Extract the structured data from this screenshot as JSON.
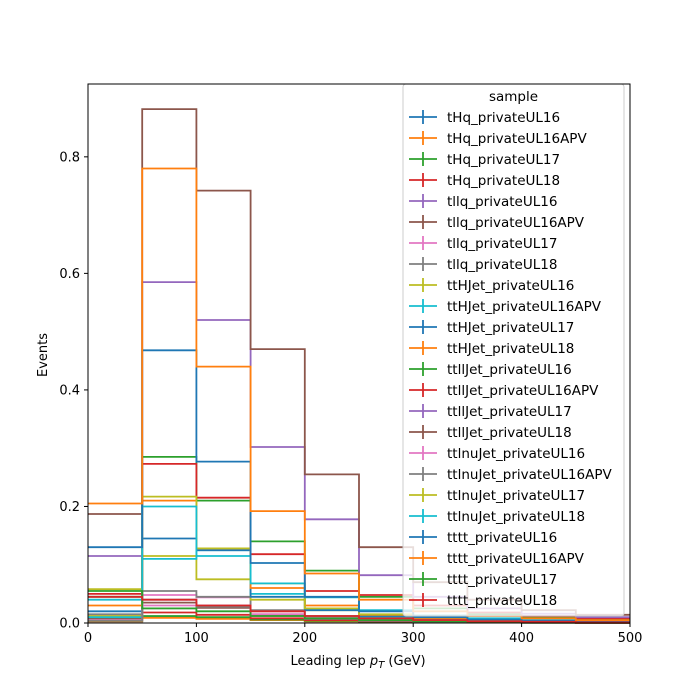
{
  "chart_data": {
    "type": "step_histogram",
    "xlabel_main": "Leading lep ",
    "xlabel_p": "p",
    "xlabel_sub": "T",
    "xlabel_unit": " (GeV)",
    "ylabel": "Events",
    "xlim": [
      0,
      500
    ],
    "ylim": [
      0,
      0.925
    ],
    "grid": false,
    "bin_edges": [
      0,
      50,
      100,
      150,
      200,
      250,
      300,
      350,
      400,
      450,
      500
    ],
    "xticks": [
      0,
      100,
      200,
      300,
      400,
      500
    ],
    "xtick_labels": [
      "0",
      "100",
      "200",
      "300",
      "400",
      "500"
    ],
    "yticks": [
      0.0,
      0.2,
      0.4,
      0.6,
      0.8
    ],
    "ytick_labels": [
      "0.0",
      "0.2",
      "0.4",
      "0.6",
      "0.8"
    ],
    "legend": {
      "title": "sample",
      "placement": "upper-right"
    },
    "series": [
      {
        "name": "tHq_privateUL16",
        "color": "#1f77b4",
        "values": [
          0.003,
          0.01,
          0.008,
          0.005,
          0.003,
          0.002,
          0.001,
          0.001,
          0.0005,
          0.0003
        ]
      },
      {
        "name": "tHq_privateUL16APV",
        "color": "#ff7f0e",
        "values": [
          0.003,
          0.009,
          0.007,
          0.005,
          0.003,
          0.002,
          0.001,
          0.001,
          0.0005,
          0.0003
        ]
      },
      {
        "name": "tHq_privateUL17",
        "color": "#2ca02c",
        "values": [
          0.004,
          0.012,
          0.01,
          0.006,
          0.004,
          0.002,
          0.001,
          0.001,
          0.0006,
          0.0003
        ]
      },
      {
        "name": "tHq_privateUL18",
        "color": "#d62728",
        "values": [
          0.005,
          0.018,
          0.014,
          0.008,
          0.005,
          0.003,
          0.002,
          0.001,
          0.0008,
          0.0004
        ]
      },
      {
        "name": "tllq_privateUL16",
        "color": "#9467bd",
        "values": [
          0.01,
          0.04,
          0.03,
          0.015,
          0.008,
          0.005,
          0.003,
          0.002,
          0.001,
          0.001
        ]
      },
      {
        "name": "tllq_privateUL16APV",
        "color": "#8c564b",
        "values": [
          0.008,
          0.035,
          0.026,
          0.013,
          0.007,
          0.004,
          0.003,
          0.002,
          0.001,
          0.001
        ]
      },
      {
        "name": "tllq_privateUL17",
        "color": "#e377c2",
        "values": [
          0.012,
          0.048,
          0.044,
          0.02,
          0.01,
          0.006,
          0.004,
          0.002,
          0.001,
          0.001
        ]
      },
      {
        "name": "tllq_privateUL18",
        "color": "#7f7f7f",
        "values": [
          0.015,
          0.055,
          0.045,
          0.022,
          0.012,
          0.007,
          0.004,
          0.003,
          0.002,
          0.001
        ]
      },
      {
        "name": "ttHJet_privateUL16",
        "color": "#bcbd22",
        "values": [
          0.012,
          0.115,
          0.075,
          0.04,
          0.022,
          0.01,
          0.006,
          0.004,
          0.003,
          0.002
        ]
      },
      {
        "name": "ttHJet_privateUL16APV",
        "color": "#17becf",
        "values": [
          0.01,
          0.11,
          0.125,
          0.05,
          0.023,
          0.01,
          0.006,
          0.004,
          0.003,
          0.002
        ]
      },
      {
        "name": "ttHJet_privateUL17",
        "color": "#1f77b4",
        "values": [
          0.02,
          0.145,
          0.125,
          0.045,
          0.022,
          0.012,
          0.007,
          0.004,
          0.003,
          0.002
        ]
      },
      {
        "name": "ttHJet_privateUL18",
        "color": "#ff7f0e",
        "values": [
          0.03,
          0.21,
          0.128,
          0.06,
          0.03,
          0.014,
          0.008,
          0.005,
          0.004,
          0.003
        ]
      },
      {
        "name": "ttllJet_privateUL16",
        "color": "#2ca02c",
        "values": [
          0.045,
          0.285,
          0.21,
          0.14,
          0.09,
          0.045,
          0.025,
          0.015,
          0.01,
          0.007
        ]
      },
      {
        "name": "ttllJet_privateUL16APV",
        "color": "#d62728",
        "values": [
          0.05,
          0.273,
          0.215,
          0.118,
          0.055,
          0.048,
          0.03,
          0.018,
          0.012,
          0.008
        ]
      },
      {
        "name": "ttllJet_privateUL17",
        "color": "#9467bd",
        "values": [
          0.115,
          0.585,
          0.52,
          0.302,
          0.178,
          0.082,
          0.045,
          0.025,
          0.016,
          0.01
        ]
      },
      {
        "name": "ttllJet_privateUL18",
        "color": "#8c564b",
        "values": [
          0.187,
          0.882,
          0.742,
          0.47,
          0.255,
          0.13,
          0.07,
          0.04,
          0.022,
          0.014
        ]
      },
      {
        "name": "ttlnuJet_privateUL16",
        "color": "#e377c2",
        "values": [
          0.005,
          0.03,
          0.03,
          0.015,
          0.008,
          0.005,
          0.003,
          0.002,
          0.001,
          0.001
        ]
      },
      {
        "name": "ttlnuJet_privateUL16APV",
        "color": "#7f7f7f",
        "values": [
          0.004,
          0.025,
          0.028,
          0.012,
          0.007,
          0.004,
          0.003,
          0.002,
          0.001,
          0.001
        ]
      },
      {
        "name": "ttlnuJet_privateUL17",
        "color": "#bcbd22",
        "values": [
          0.058,
          0.217,
          0.128,
          0.068,
          0.025,
          0.015,
          0.01,
          0.006,
          0.004,
          0.003
        ]
      },
      {
        "name": "ttlnuJet_privateUL18",
        "color": "#17becf",
        "values": [
          0.04,
          0.2,
          0.115,
          0.068,
          0.044,
          0.022,
          0.013,
          0.008,
          0.005,
          0.003
        ]
      },
      {
        "name": "tttt_privateUL16",
        "color": "#1f77b4",
        "values": [
          0.13,
          0.468,
          0.277,
          0.103,
          0.045,
          0.02,
          0.01,
          0.006,
          0.004,
          0.003
        ]
      },
      {
        "name": "tttt_privateUL16APV",
        "color": "#ff7f0e",
        "values": [
          0.205,
          0.78,
          0.44,
          0.192,
          0.085,
          0.04,
          0.02,
          0.012,
          0.008,
          0.005
        ]
      },
      {
        "name": "tttt_privateUL17",
        "color": "#2ca02c",
        "values": [
          0.055,
          0.025,
          0.02,
          0.012,
          0.008,
          0.005,
          0.003,
          0.002,
          0.001,
          0.001
        ]
      },
      {
        "name": "tttt_privateUL18",
        "color": "#d62728",
        "values": [
          0.045,
          0.04,
          0.03,
          0.02,
          0.012,
          0.008,
          0.005,
          0.003,
          0.002,
          0.001
        ]
      }
    ]
  }
}
